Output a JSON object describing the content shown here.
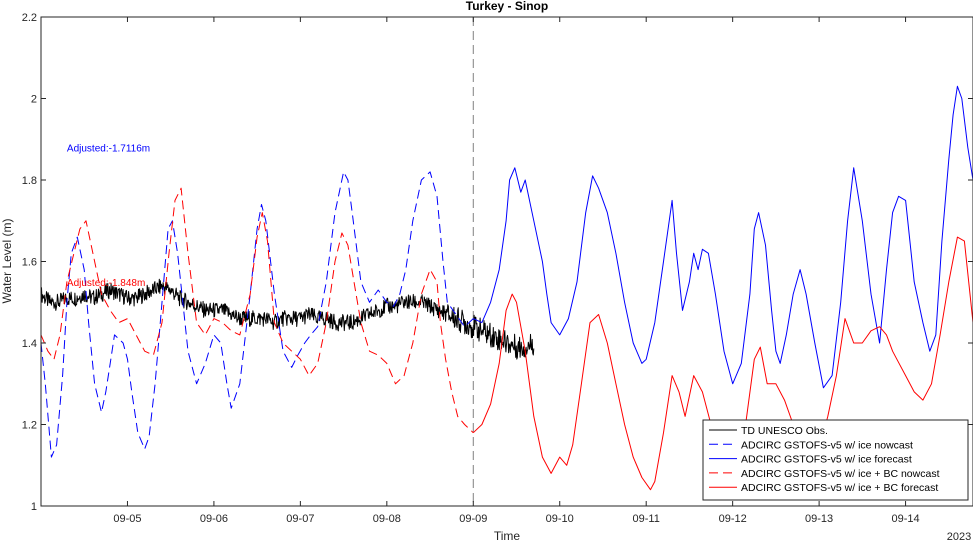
{
  "chart_data": {
    "type": "line",
    "title": "Turkey - Sinop",
    "xlabel": "Time",
    "ylabel": "Water Level (m)",
    "year_label": "2023",
    "xlim": [
      4.0,
      14.78
    ],
    "ylim": [
      1.0,
      2.2
    ],
    "x_ticks": [
      {
        "x": 5,
        "label": "09-05"
      },
      {
        "x": 6,
        "label": "09-06"
      },
      {
        "x": 7,
        "label": "09-07"
      },
      {
        "x": 8,
        "label": "09-08"
      },
      {
        "x": 9,
        "label": "09-09"
      },
      {
        "x": 10,
        "label": "09-10"
      },
      {
        "x": 11,
        "label": "09-11"
      },
      {
        "x": 12,
        "label": "09-12"
      },
      {
        "x": 13,
        "label": "09-13"
      },
      {
        "x": 14,
        "label": "09-14"
      }
    ],
    "y_ticks": [
      {
        "y": 1.0,
        "label": "1"
      },
      {
        "y": 1.2,
        "label": "1.2"
      },
      {
        "y": 1.4,
        "label": "1.4"
      },
      {
        "y": 1.6,
        "label": "1.6"
      },
      {
        "y": 1.8,
        "label": "1.8"
      },
      {
        "y": 2.0,
        "label": "2"
      },
      {
        "y": 2.2,
        "label": "2.2"
      }
    ],
    "grid": false,
    "forecast_start_line": 9.0,
    "legend_position": "bottom-right",
    "annotations": [
      {
        "text": "Adjusted:-1.7116m",
        "x": 4.3,
        "y": 1.87,
        "color": "#0000ff"
      },
      {
        "text": "Adjusted:-1.848m",
        "x": 4.3,
        "y": 1.54,
        "color": "#ff0000"
      }
    ],
    "series": [
      {
        "name": "TD UNESCO Obs.",
        "color": "#000000",
        "dash": "solid",
        "x": [
          4.0,
          4.1,
          4.2,
          4.3,
          4.4,
          4.5,
          4.6,
          4.7,
          4.8,
          4.9,
          5.0,
          5.1,
          5.2,
          5.3,
          5.4,
          5.5,
          5.6,
          5.7,
          5.8,
          5.9,
          6.0,
          6.1,
          6.2,
          6.3,
          6.4,
          6.5,
          6.6,
          6.7,
          6.8,
          6.9,
          7.0,
          7.1,
          7.2,
          7.3,
          7.4,
          7.5,
          7.6,
          7.7,
          7.8,
          7.9,
          8.0,
          8.1,
          8.2,
          8.3,
          8.4,
          8.5,
          8.6,
          8.7,
          8.8,
          8.9,
          9.0,
          9.1,
          9.2,
          9.3,
          9.4,
          9.5,
          9.6,
          9.7
        ],
        "y": [
          1.52,
          1.5,
          1.5,
          1.51,
          1.51,
          1.52,
          1.51,
          1.52,
          1.53,
          1.52,
          1.51,
          1.51,
          1.52,
          1.53,
          1.54,
          1.53,
          1.51,
          1.5,
          1.49,
          1.48,
          1.48,
          1.48,
          1.47,
          1.46,
          1.46,
          1.46,
          1.46,
          1.45,
          1.46,
          1.46,
          1.46,
          1.47,
          1.46,
          1.46,
          1.45,
          1.45,
          1.45,
          1.46,
          1.47,
          1.48,
          1.49,
          1.49,
          1.5,
          1.5,
          1.5,
          1.49,
          1.48,
          1.47,
          1.46,
          1.45,
          1.44,
          1.43,
          1.42,
          1.41,
          1.4,
          1.39,
          1.39,
          1.4
        ]
      },
      {
        "name": "ADCIRC GSTOFS-v5 w/ ice nowcast",
        "color": "#0000ff",
        "dash": "dashed",
        "x": [
          4.0,
          4.05,
          4.12,
          4.18,
          4.25,
          4.3,
          4.35,
          4.42,
          4.5,
          4.55,
          4.62,
          4.7,
          4.75,
          4.8,
          4.85,
          4.95,
          5.0,
          5.05,
          5.12,
          5.2,
          5.25,
          5.32,
          5.4,
          5.47,
          5.52,
          5.58,
          5.65,
          5.7,
          5.8,
          5.9,
          6.0,
          6.08,
          6.15,
          6.2,
          6.3,
          6.42,
          6.5,
          6.55,
          6.6,
          6.7,
          6.8,
          6.9,
          6.97,
          7.05,
          7.12,
          7.2,
          7.3,
          7.4,
          7.5,
          7.55,
          7.6,
          7.7,
          7.8,
          7.9,
          8.0,
          8.08,
          8.15,
          8.22,
          8.3,
          8.4,
          8.5,
          8.58,
          8.65,
          8.7,
          8.8,
          8.9,
          9.0
        ],
        "y": [
          1.4,
          1.3,
          1.12,
          1.15,
          1.32,
          1.5,
          1.62,
          1.66,
          1.58,
          1.45,
          1.3,
          1.23,
          1.28,
          1.35,
          1.42,
          1.4,
          1.36,
          1.28,
          1.18,
          1.14,
          1.17,
          1.3,
          1.5,
          1.68,
          1.7,
          1.62,
          1.48,
          1.38,
          1.3,
          1.35,
          1.42,
          1.4,
          1.3,
          1.24,
          1.3,
          1.52,
          1.68,
          1.74,
          1.7,
          1.52,
          1.38,
          1.34,
          1.37,
          1.4,
          1.42,
          1.44,
          1.55,
          1.72,
          1.82,
          1.8,
          1.72,
          1.55,
          1.5,
          1.53,
          1.5,
          1.49,
          1.52,
          1.58,
          1.7,
          1.8,
          1.82,
          1.76,
          1.6,
          1.5,
          1.47,
          1.44,
          1.46
        ]
      },
      {
        "name": "ADCIRC GSTOFS-v5 w/ ice forecast",
        "color": "#0000ff",
        "dash": "solid",
        "x": [
          9.0,
          9.1,
          9.2,
          9.3,
          9.38,
          9.42,
          9.48,
          9.55,
          9.6,
          9.7,
          9.8,
          9.85,
          9.9,
          10.0,
          10.1,
          10.2,
          10.3,
          10.38,
          10.45,
          10.55,
          10.65,
          10.75,
          10.85,
          10.95,
          11.0,
          11.1,
          11.2,
          11.3,
          11.35,
          11.42,
          11.5,
          11.55,
          11.6,
          11.65,
          11.72,
          11.8,
          11.9,
          12.0,
          12.1,
          12.2,
          12.25,
          12.3,
          12.38,
          12.45,
          12.5,
          12.55,
          12.62,
          12.7,
          12.78,
          12.85,
          12.95,
          13.05,
          13.15,
          13.25,
          13.33,
          13.4,
          13.5,
          13.6,
          13.7,
          13.78,
          13.85,
          13.92,
          14.0,
          14.1,
          14.2,
          14.28,
          14.35,
          14.42,
          14.5,
          14.55,
          14.6,
          14.65,
          14.72,
          14.78
        ],
        "y": [
          1.46,
          1.45,
          1.5,
          1.58,
          1.7,
          1.8,
          1.83,
          1.77,
          1.8,
          1.7,
          1.6,
          1.52,
          1.45,
          1.42,
          1.46,
          1.55,
          1.72,
          1.81,
          1.78,
          1.72,
          1.62,
          1.5,
          1.4,
          1.35,
          1.36,
          1.45,
          1.6,
          1.75,
          1.62,
          1.48,
          1.55,
          1.62,
          1.58,
          1.63,
          1.62,
          1.52,
          1.38,
          1.3,
          1.35,
          1.52,
          1.68,
          1.72,
          1.64,
          1.48,
          1.38,
          1.35,
          1.42,
          1.52,
          1.58,
          1.52,
          1.4,
          1.29,
          1.32,
          1.5,
          1.7,
          1.83,
          1.7,
          1.52,
          1.4,
          1.58,
          1.72,
          1.76,
          1.75,
          1.55,
          1.45,
          1.38,
          1.42,
          1.65,
          1.85,
          1.96,
          2.03,
          2.0,
          1.88,
          1.8
        ]
      },
      {
        "name": "ADCIRC GSTOFS-v5 w/ ice + BC nowcast",
        "color": "#ff0000",
        "dash": "dashed",
        "x": [
          4.0,
          4.08,
          4.15,
          4.22,
          4.3,
          4.38,
          4.45,
          4.52,
          4.6,
          4.7,
          4.8,
          4.9,
          5.0,
          5.1,
          5.2,
          5.3,
          5.4,
          5.48,
          5.55,
          5.62,
          5.7,
          5.8,
          5.9,
          6.0,
          6.1,
          6.2,
          6.3,
          6.42,
          6.5,
          6.56,
          6.62,
          6.7,
          6.8,
          6.9,
          7.0,
          7.1,
          7.2,
          7.3,
          7.4,
          7.48,
          7.55,
          7.62,
          7.7,
          7.8,
          7.9,
          8.0,
          8.1,
          8.2,
          8.3,
          8.4,
          8.5,
          8.58,
          8.62,
          8.68,
          8.75,
          8.82,
          8.9,
          9.0
        ],
        "y": [
          1.42,
          1.38,
          1.36,
          1.42,
          1.55,
          1.62,
          1.68,
          1.7,
          1.62,
          1.52,
          1.48,
          1.45,
          1.46,
          1.42,
          1.38,
          1.37,
          1.45,
          1.62,
          1.75,
          1.78,
          1.62,
          1.45,
          1.42,
          1.46,
          1.45,
          1.43,
          1.42,
          1.52,
          1.66,
          1.72,
          1.65,
          1.45,
          1.4,
          1.38,
          1.36,
          1.32,
          1.35,
          1.45,
          1.6,
          1.67,
          1.64,
          1.55,
          1.45,
          1.38,
          1.37,
          1.35,
          1.3,
          1.32,
          1.4,
          1.52,
          1.58,
          1.55,
          1.45,
          1.36,
          1.28,
          1.22,
          1.2,
          1.18
        ]
      },
      {
        "name": "ADCIRC GSTOFS-v5 w/ ice + BC forecast",
        "color": "#ff0000",
        "dash": "solid",
        "x": [
          9.0,
          9.1,
          9.2,
          9.3,
          9.38,
          9.45,
          9.5,
          9.6,
          9.7,
          9.8,
          9.9,
          10.0,
          10.08,
          10.15,
          10.25,
          10.35,
          10.45,
          10.55,
          10.65,
          10.75,
          10.85,
          10.95,
          11.05,
          11.1,
          11.2,
          11.3,
          11.38,
          11.45,
          11.55,
          11.65,
          11.75,
          11.85,
          11.95,
          12.05,
          12.15,
          12.25,
          12.32,
          12.4,
          12.5,
          12.6,
          12.7,
          12.8,
          12.9,
          13.0,
          13.1,
          13.2,
          13.3,
          13.4,
          13.5,
          13.6,
          13.7,
          13.78,
          13.85,
          13.9,
          14.0,
          14.1,
          14.2,
          14.3,
          14.4,
          14.5,
          14.6,
          14.68,
          14.78
        ],
        "y": [
          1.18,
          1.2,
          1.25,
          1.35,
          1.48,
          1.52,
          1.5,
          1.38,
          1.22,
          1.12,
          1.08,
          1.12,
          1.1,
          1.15,
          1.3,
          1.45,
          1.47,
          1.4,
          1.3,
          1.2,
          1.12,
          1.07,
          1.04,
          1.06,
          1.18,
          1.32,
          1.28,
          1.22,
          1.32,
          1.28,
          1.2,
          1.12,
          1.06,
          1.1,
          1.2,
          1.36,
          1.39,
          1.3,
          1.3,
          1.26,
          1.2,
          1.15,
          1.12,
          1.14,
          1.22,
          1.32,
          1.46,
          1.4,
          1.4,
          1.43,
          1.44,
          1.42,
          1.38,
          1.36,
          1.32,
          1.28,
          1.26,
          1.3,
          1.42,
          1.55,
          1.66,
          1.65,
          1.45
        ]
      }
    ]
  }
}
